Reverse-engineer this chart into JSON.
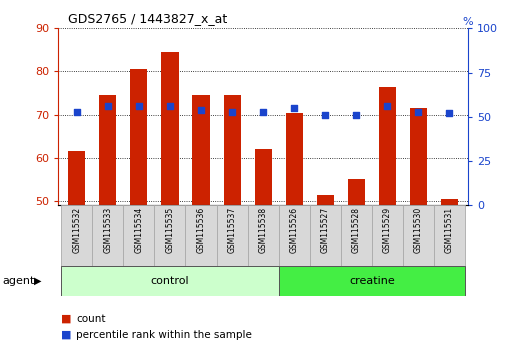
{
  "title": "GDS2765 / 1443827_x_at",
  "samples": [
    "GSM115532",
    "GSM115533",
    "GSM115534",
    "GSM115535",
    "GSM115536",
    "GSM115537",
    "GSM115538",
    "GSM115526",
    "GSM115527",
    "GSM115528",
    "GSM115529",
    "GSM115530",
    "GSM115531"
  ],
  "counts": [
    61.5,
    74.5,
    80.5,
    84.5,
    74.5,
    74.5,
    62.0,
    70.5,
    51.5,
    55.0,
    76.5,
    71.5,
    50.5
  ],
  "percentiles": [
    53,
    56,
    56,
    56,
    54,
    53,
    53,
    55,
    51,
    51,
    56,
    53,
    52
  ],
  "bar_color": "#cc2200",
  "scatter_color": "#1a44cc",
  "ylim_left": [
    49,
    90
  ],
  "ylim_right": [
    0,
    100
  ],
  "yticks_left": [
    50,
    60,
    70,
    80,
    90
  ],
  "yticks_right": [
    0,
    25,
    50,
    75,
    100
  ],
  "control_color": "#ccffcc",
  "creatine_color": "#44ee44",
  "bar_width": 0.55,
  "agent_label": "agent",
  "control_label": "control",
  "creatine_label": "creatine",
  "legend_count": "count",
  "legend_pct": "percentile rank within the sample",
  "n_control": 7,
  "n_creatine": 6
}
